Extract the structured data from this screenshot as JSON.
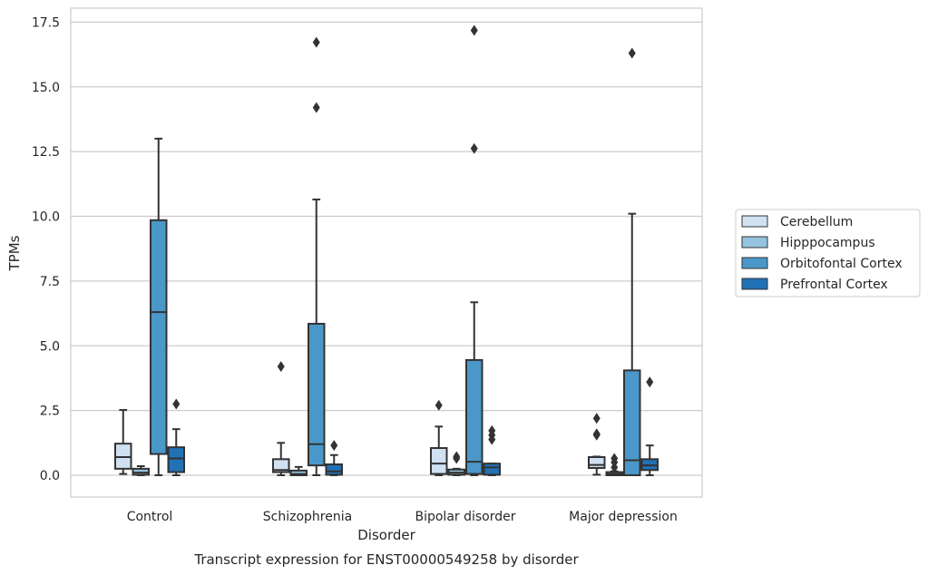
{
  "chart_data": {
    "type": "box",
    "title": "",
    "caption": "Transcript expression for ENST00000549258 by disorder",
    "xlabel": "Disorder",
    "ylabel": "TPMs",
    "ylim": [
      -0.8,
      18.1
    ],
    "yticks": [
      "0.0",
      "2.5",
      "5.0",
      "7.5",
      "10.0",
      "12.5",
      "15.0",
      "17.5"
    ],
    "grid": "horizontal",
    "legend_position": "right",
    "categories": [
      "Control",
      "Schizophrenia",
      "Bipolar disorder",
      "Major depression"
    ],
    "series": [
      {
        "name": "Cerebellum",
        "color": "#d0e1f2",
        "boxes": [
          {
            "whislo": 0.05,
            "q1": 0.25,
            "med": 0.7,
            "q3": 1.22,
            "whishi": 2.52,
            "fliers": []
          },
          {
            "whislo": 0.0,
            "q1": 0.12,
            "med": 0.2,
            "q3": 0.62,
            "whishi": 1.25,
            "fliers": [
              4.2
            ]
          },
          {
            "whislo": 0.0,
            "q1": 0.05,
            "med": 0.45,
            "q3": 1.05,
            "whishi": 1.88,
            "fliers": [
              2.7
            ]
          },
          {
            "whislo": 0.02,
            "q1": 0.28,
            "med": 0.4,
            "q3": 0.7,
            "whishi": 0.72,
            "fliers": [
              1.55,
              1.6,
              2.2
            ]
          }
        ]
      },
      {
        "name": "Hipppocampus",
        "color": "#94c4df",
        "boxes": [
          {
            "whislo": 0.0,
            "q1": 0.02,
            "med": 0.1,
            "q3": 0.25,
            "whishi": 0.35,
            "fliers": []
          },
          {
            "whislo": 0.0,
            "q1": 0.0,
            "med": 0.05,
            "q3": 0.18,
            "whishi": 0.32,
            "fliers": []
          },
          {
            "whislo": 0.0,
            "q1": 0.02,
            "med": 0.1,
            "q3": 0.22,
            "whishi": 0.25,
            "fliers": [
              0.65,
              0.72
            ]
          },
          {
            "whislo": 0.0,
            "q1": 0.0,
            "med": 0.05,
            "q3": 0.12,
            "whishi": 0.15,
            "fliers": [
              0.3,
              0.5,
              0.65
            ]
          }
        ]
      },
      {
        "name": "Orbitofontal Cortex",
        "color": "#4a98c9",
        "boxes": [
          {
            "whislo": 0.0,
            "q1": 0.82,
            "med": 6.3,
            "q3": 9.85,
            "whishi": 13.0,
            "fliers": []
          },
          {
            "whislo": 0.0,
            "q1": 0.38,
            "med": 1.2,
            "q3": 5.85,
            "whishi": 10.65,
            "fliers": [
              14.2,
              16.72
            ]
          },
          {
            "whislo": 0.0,
            "q1": 0.05,
            "med": 0.52,
            "q3": 4.45,
            "whishi": 6.68,
            "fliers": [
              12.62,
              17.18
            ]
          },
          {
            "whislo": 0.0,
            "q1": 0.0,
            "med": 0.58,
            "q3": 4.05,
            "whishi": 10.1,
            "fliers": [
              16.3
            ]
          }
        ]
      },
      {
        "name": "Prefrontal Cortex",
        "color": "#2171b5",
        "boxes": [
          {
            "whislo": 0.0,
            "q1": 0.12,
            "med": 0.65,
            "q3": 1.08,
            "whishi": 1.78,
            "fliers": [
              2.75
            ]
          },
          {
            "whislo": 0.0,
            "q1": 0.02,
            "med": 0.15,
            "q3": 0.42,
            "whishi": 0.78,
            "fliers": [
              1.15
            ]
          },
          {
            "whislo": 0.0,
            "q1": 0.02,
            "med": 0.3,
            "q3": 0.45,
            "whishi": 0.45,
            "fliers": [
              1.38,
              1.55,
              1.72
            ]
          },
          {
            "whislo": 0.0,
            "q1": 0.2,
            "med": 0.38,
            "q3": 0.62,
            "whishi": 1.15,
            "fliers": [
              3.6
            ]
          }
        ]
      }
    ]
  }
}
